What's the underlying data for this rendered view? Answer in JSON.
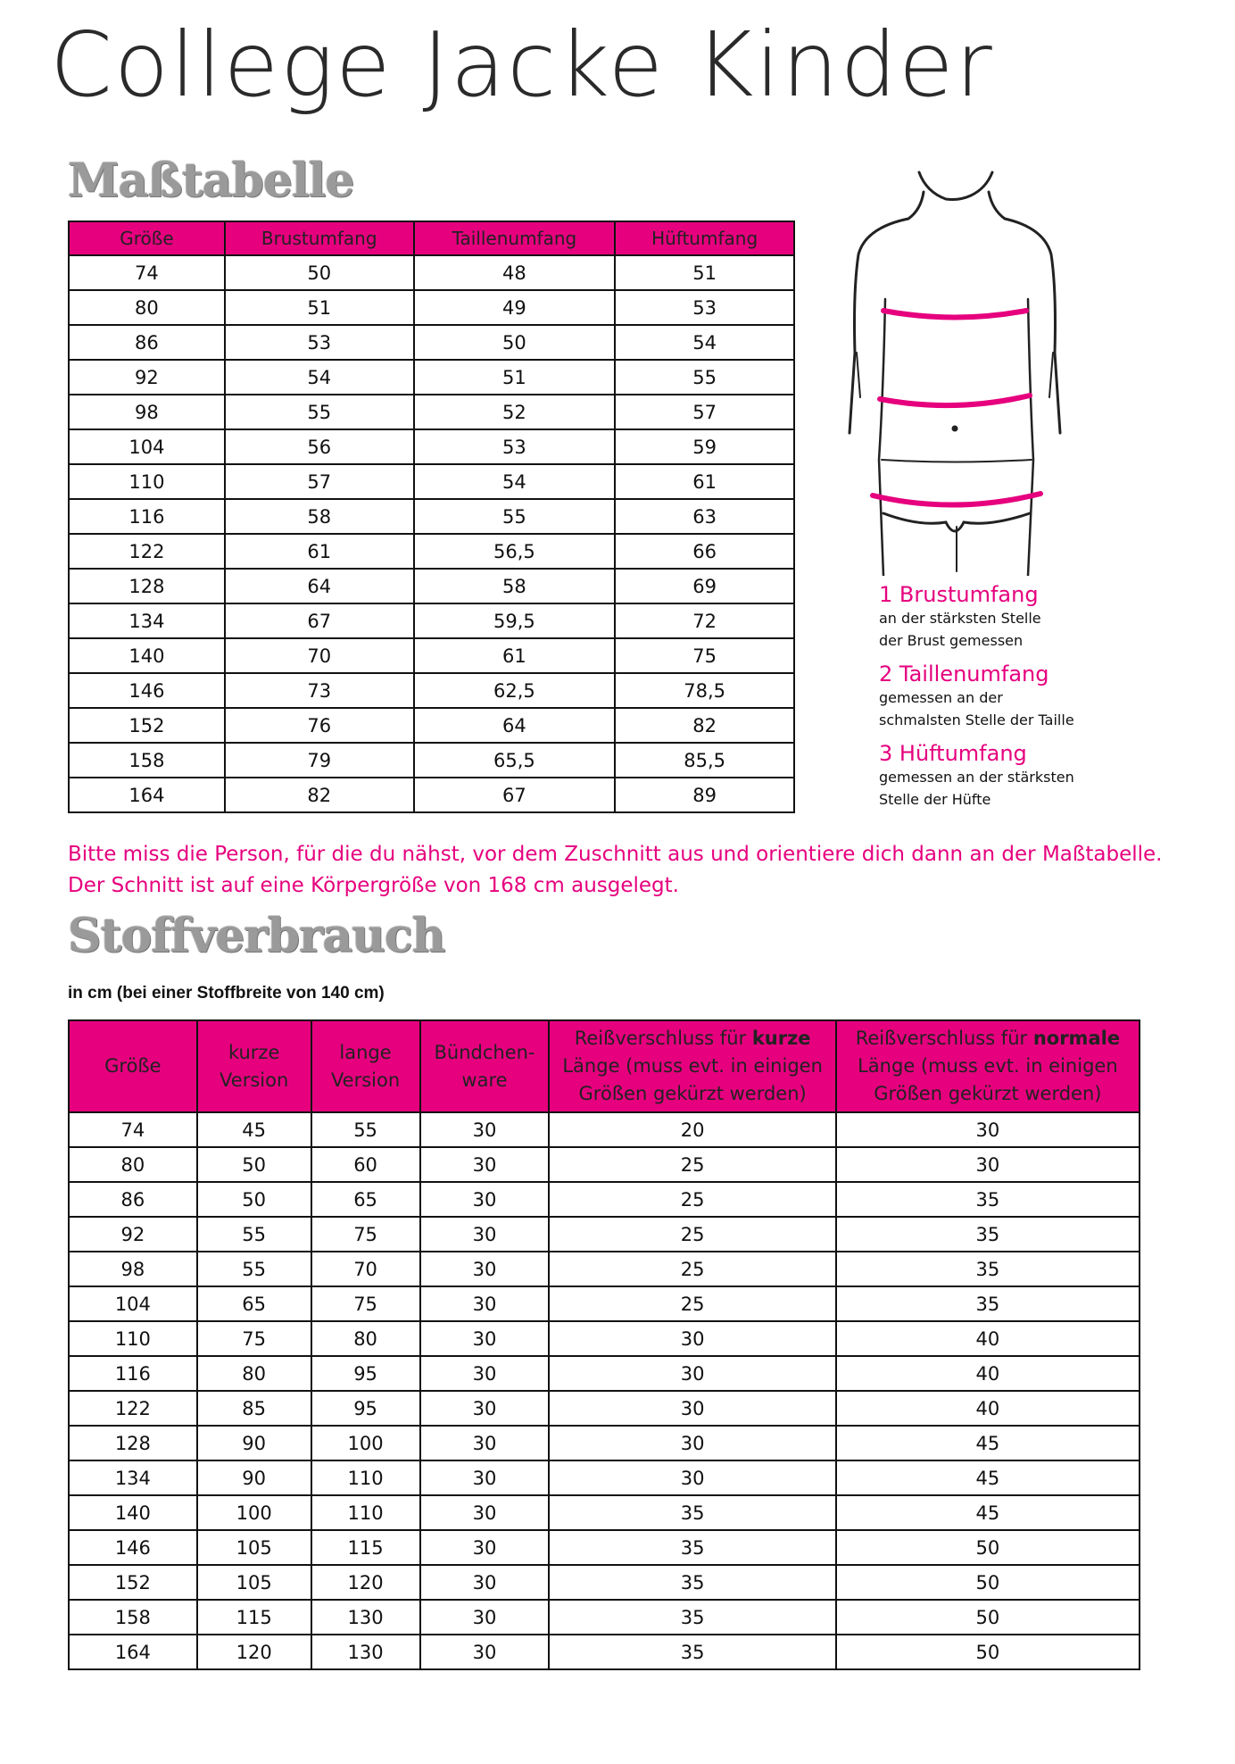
{
  "title": "College Jacke Kinder",
  "size_chart": {
    "heading": "Maßtabelle",
    "columns": [
      "Größe",
      "Brustumfang",
      "Taillenumfang",
      "Hüftumfang"
    ],
    "rows": [
      [
        "74",
        "50",
        "48",
        "51"
      ],
      [
        "80",
        "51",
        "49",
        "53"
      ],
      [
        "86",
        "53",
        "50",
        "54"
      ],
      [
        "92",
        "54",
        "51",
        "55"
      ],
      [
        "98",
        "55",
        "52",
        "57"
      ],
      [
        "104",
        "56",
        "53",
        "59"
      ],
      [
        "110",
        "57",
        "54",
        "61"
      ],
      [
        "116",
        "58",
        "55",
        "63"
      ],
      [
        "122",
        "61",
        "56,5",
        "66"
      ],
      [
        "128",
        "64",
        "58",
        "69"
      ],
      [
        "134",
        "67",
        "59,5",
        "72"
      ],
      [
        "140",
        "70",
        "61",
        "75"
      ],
      [
        "146",
        "73",
        "62,5",
        "78,5"
      ],
      [
        "152",
        "76",
        "64",
        "82"
      ],
      [
        "158",
        "79",
        "65,5",
        "85,5"
      ],
      [
        "164",
        "82",
        "67",
        "89"
      ]
    ]
  },
  "legend": [
    {
      "title": "1 Brustumfang",
      "desc": "an der stärksten Stelle\nder Brust gemessen"
    },
    {
      "title": "2 Taillenumfang",
      "desc": "gemessen an der\nschmalsten Stelle der Taille"
    },
    {
      "title": "3 Hüftumfang",
      "desc": "gemessen an der stärksten\nStelle der Hüfte"
    }
  ],
  "note": {
    "line1": "Bitte miss die Person, für die du nähst, vor dem Zuschnitt aus und orientiere dich dann an der Maßtabelle.",
    "line2": "Der Schnitt ist auf eine Körpergröße von 168 cm ausgelegt."
  },
  "fabric": {
    "heading": "Stoffverbrauch",
    "subtitle": "in cm (bei einer Stoffbreite von 140 cm)",
    "columns": [
      {
        "pre": "Größe"
      },
      {
        "pre": "kurze Version"
      },
      {
        "pre": "lange Version"
      },
      {
        "pre": "Bündchen-ware"
      },
      {
        "pre": "Reißverschluss für ",
        "bold": "kurze",
        "post": " Länge (muss evt. in einigen Größen gekürzt werden)"
      },
      {
        "pre": "Reißverschluss für ",
        "bold": "normale",
        "post": " Länge (muss evt. in einigen Größen gekürzt werden)"
      }
    ],
    "rows": [
      [
        "74",
        "45",
        "55",
        "30",
        "20",
        "30"
      ],
      [
        "80",
        "50",
        "60",
        "30",
        "25",
        "30"
      ],
      [
        "86",
        "50",
        "65",
        "30",
        "25",
        "35"
      ],
      [
        "92",
        "55",
        "75",
        "30",
        "25",
        "35"
      ],
      [
        "98",
        "55",
        "70",
        "30",
        "25",
        "35"
      ],
      [
        "104",
        "65",
        "75",
        "30",
        "25",
        "35"
      ],
      [
        "110",
        "75",
        "80",
        "30",
        "30",
        "40"
      ],
      [
        "116",
        "80",
        "95",
        "30",
        "30",
        "40"
      ],
      [
        "122",
        "85",
        "95",
        "30",
        "30",
        "40"
      ],
      [
        "128",
        "90",
        "100",
        "30",
        "30",
        "45"
      ],
      [
        "134",
        "90",
        "110",
        "30",
        "30",
        "45"
      ],
      [
        "140",
        "100",
        "110",
        "30",
        "35",
        "45"
      ],
      [
        "146",
        "105",
        "115",
        "30",
        "35",
        "50"
      ],
      [
        "152",
        "105",
        "120",
        "30",
        "35",
        "50"
      ],
      [
        "158",
        "115",
        "130",
        "30",
        "35",
        "50"
      ],
      [
        "164",
        "120",
        "130",
        "30",
        "35",
        "50"
      ]
    ]
  },
  "colors": {
    "accent": "#e6007e",
    "heading_gray": "#9a9a9a"
  }
}
